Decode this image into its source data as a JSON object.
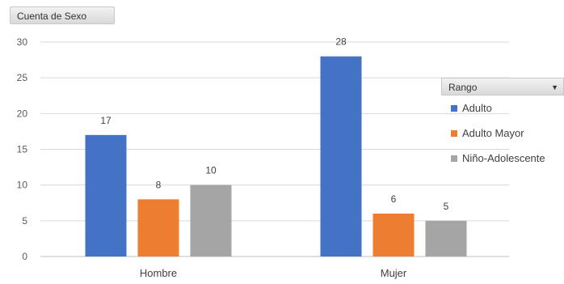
{
  "field_button": {
    "label": "Cuenta de Sexo"
  },
  "legend": {
    "title": "Rango",
    "items": [
      {
        "label": "Adulto",
        "color": "#4472c4"
      },
      {
        "label": "Adulto Mayor",
        "color": "#ed7d31"
      },
      {
        "label": "Niño-Adolescente",
        "color": "#a5a5a5"
      }
    ]
  },
  "chart_data": {
    "type": "bar",
    "categories": [
      "Hombre",
      "Mujer"
    ],
    "series": [
      {
        "name": "Adulto",
        "values": [
          17,
          28
        ],
        "color": "#4472c4"
      },
      {
        "name": "Adulto Mayor",
        "values": [
          8,
          6
        ],
        "color": "#ed7d31"
      },
      {
        "name": "Niño-Adolescente",
        "values": [
          10,
          5
        ],
        "color": "#a5a5a5"
      }
    ],
    "yticks": [
      0,
      5,
      10,
      15,
      20,
      25,
      30
    ],
    "ylim": [
      0,
      30
    ],
    "grid": true,
    "legend_position": "right",
    "data_labels": true
  }
}
